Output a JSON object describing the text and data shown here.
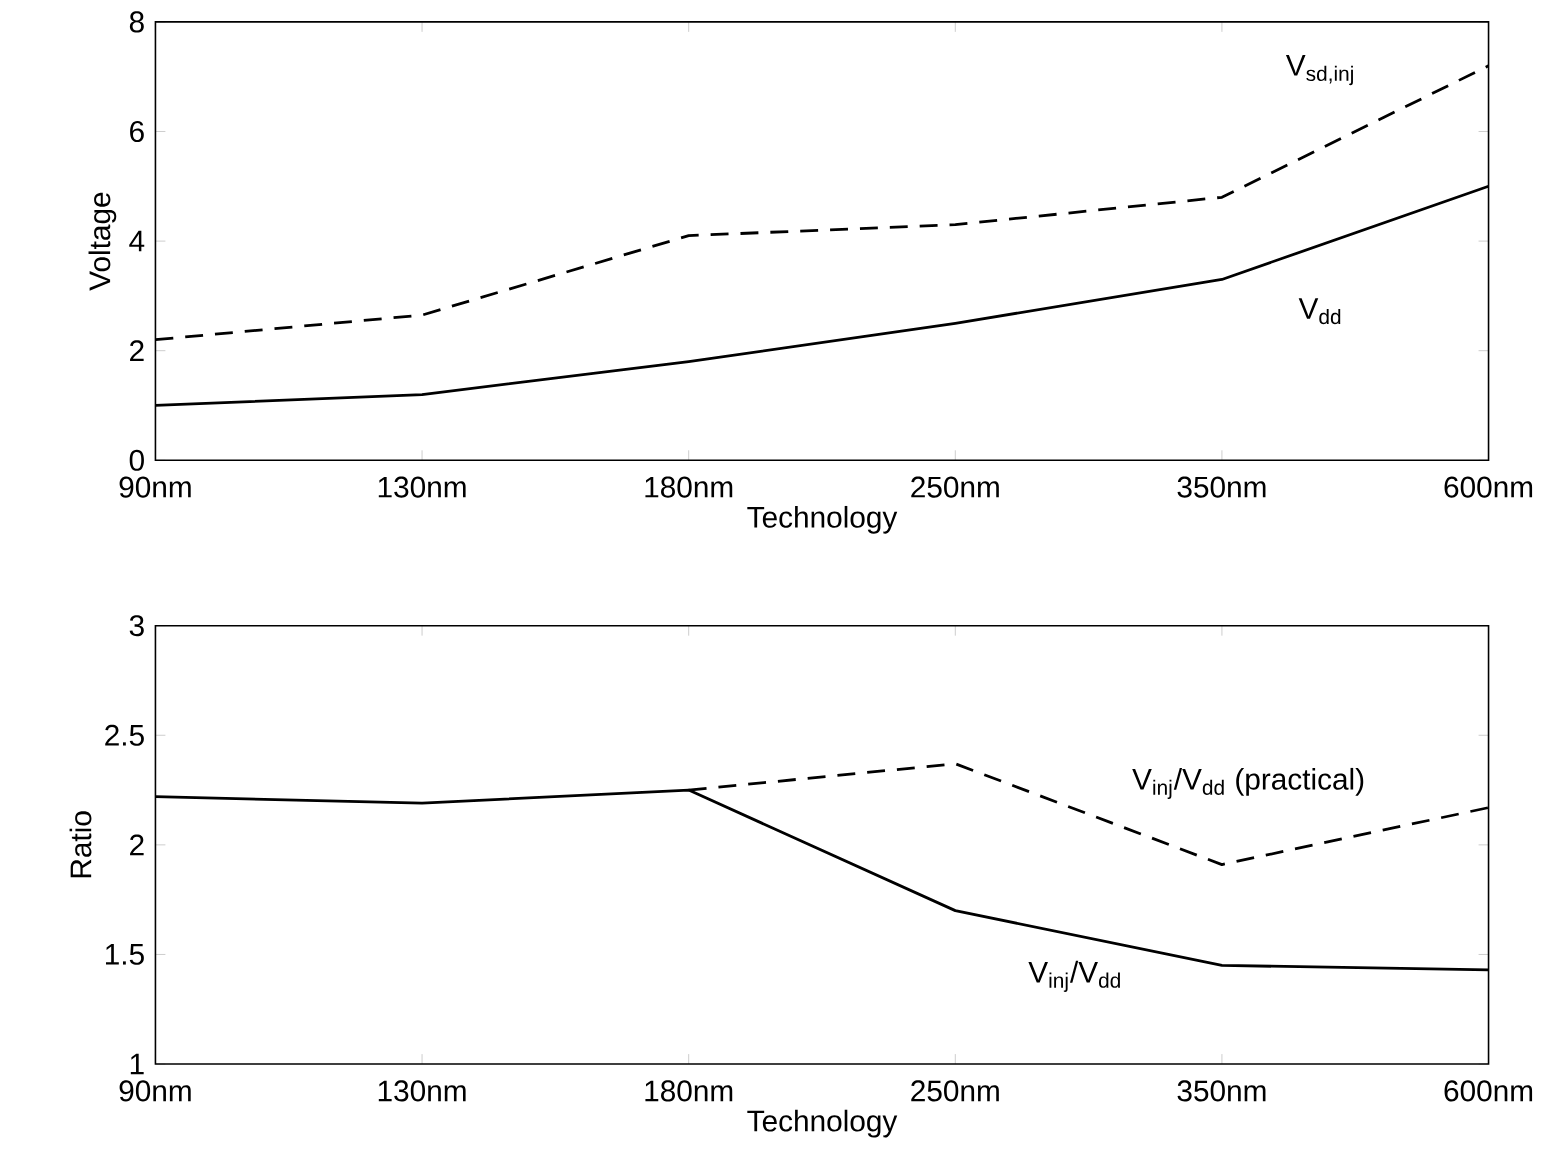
{
  "chart_data": [
    {
      "type": "line",
      "xlabel": "Technology",
      "ylabel": "Voltage",
      "categories": [
        "90nm",
        "130nm",
        "180nm",
        "250nm",
        "350nm",
        "600nm"
      ],
      "ylim": [
        0,
        8
      ],
      "yticks": [
        0,
        2,
        4,
        6,
        8
      ],
      "series": [
        {
          "name": "V$_{sd,inj}$",
          "color": "#000000",
          "line_style": "dashed",
          "values": [
            2.2,
            2.65,
            4.1,
            4.3,
            4.8,
            7.2
          ]
        },
        {
          "name": "V$_{dd}$",
          "color": "#000000",
          "line_style": "solid",
          "values": [
            1.0,
            1.2,
            1.8,
            2.5,
            3.3,
            5.0
          ]
        }
      ]
    },
    {
      "type": "line",
      "xlabel": "Technology",
      "ylabel": "Ratio",
      "categories": [
        "90nm",
        "130nm",
        "180nm",
        "250nm",
        "350nm",
        "600nm"
      ],
      "ylim": [
        1,
        3
      ],
      "yticks": [
        1,
        1.5,
        2,
        2.5,
        3
      ],
      "series": [
        {
          "name": "V$_{inj}$/V$_{dd}$ (practical)",
          "color": "#000000",
          "line_style": "dashed",
          "values": [
            null,
            null,
            2.25,
            2.37,
            1.91,
            2.17
          ]
        },
        {
          "name": "V$_{inj}$/V$_{dd}$",
          "color": "#000000",
          "line_style": "solid",
          "values": [
            2.22,
            2.19,
            2.25,
            1.7,
            1.45,
            1.43
          ]
        }
      ]
    }
  ]
}
